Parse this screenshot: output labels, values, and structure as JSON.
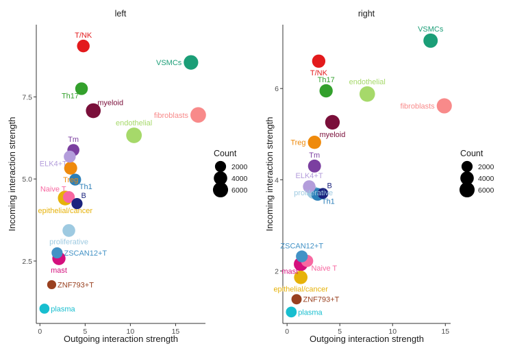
{
  "chart_data": [
    {
      "type": "scatter",
      "title": "left",
      "xlabel": "Outgoing interaction strength",
      "ylabel": "Incoming interaction strength",
      "xlim": [
        -0.4,
        18.3
      ],
      "ylim": [
        0.6,
        9.7
      ],
      "xticks": [
        0,
        5,
        10,
        15
      ],
      "xtick_labels": [
        "0",
        "5",
        "10",
        "15"
      ],
      "yticks": [
        2.5,
        5.0,
        7.5
      ],
      "ytick_labels": [
        "2.5",
        "5.0",
        "7.5"
      ],
      "points": [
        {
          "label": "T/NK",
          "x": 4.8,
          "y": 9.05,
          "count": 3200,
          "color": "#e31a1c",
          "label_pos": "above"
        },
        {
          "label": "VSMCs",
          "x": 16.7,
          "y": 8.55,
          "count": 5200,
          "color": "#1b9e77",
          "label_pos": "left"
        },
        {
          "label": "Th17",
          "x": 4.6,
          "y": 7.75,
          "count": 3200,
          "color": "#33a02c",
          "label_pos": "below-left"
        },
        {
          "label": "myeloid",
          "x": 5.9,
          "y": 7.08,
          "count": 5600,
          "color": "#7a0f3a",
          "label_pos": "above-right"
        },
        {
          "label": "fibroblasts",
          "x": 17.5,
          "y": 6.95,
          "count": 6600,
          "color": "#f88a8a",
          "label_pos": "left"
        },
        {
          "label": "endothelial",
          "x": 10.4,
          "y": 6.33,
          "count": 6600,
          "color": "#a6d96a",
          "label_pos": "above"
        },
        {
          "label": "Tm",
          "x": 3.7,
          "y": 5.88,
          "count": 2700,
          "color": "#7b3fa0",
          "label_pos": "above"
        },
        {
          "label": "ELK4+T",
          "x": 3.3,
          "y": 5.68,
          "count": 2600,
          "color": "#b39ddb",
          "label_pos": "below-left"
        },
        {
          "label": "Treg",
          "x": 3.4,
          "y": 5.33,
          "count": 3600,
          "color": "#ef8a0c",
          "label_pos": "below"
        },
        {
          "label": "Th1",
          "x": 3.9,
          "y": 4.98,
          "count": 2500,
          "color": "#2c7fb8",
          "label_pos": "below-right"
        },
        {
          "label": "Naive T",
          "x": 3.2,
          "y": 4.45,
          "count": 2500,
          "color": "#f768a1",
          "label_pos": "above-left"
        },
        {
          "label": "epithelial/cancer",
          "x": 2.8,
          "y": 4.42,
          "count": 5500,
          "color": "#e6b20a",
          "label_pos": "below"
        },
        {
          "label": "B",
          "x": 4.1,
          "y": 4.25,
          "count": 2000,
          "color": "#1a237e",
          "label_pos": "above-right"
        },
        {
          "label": "proliferative",
          "x": 3.2,
          "y": 3.43,
          "count": 3300,
          "color": "#9ecae1",
          "label_pos": "below"
        },
        {
          "label": "ZSCAN12+T",
          "x": 1.9,
          "y": 2.75,
          "count": 2000,
          "color": "#4292c6",
          "label_pos": "right"
        },
        {
          "label": "mast",
          "x": 2.1,
          "y": 2.58,
          "count": 3800,
          "color": "#d40f7d",
          "label_pos": "below"
        },
        {
          "label": "ZNF793+T",
          "x": 1.3,
          "y": 1.78,
          "count": 1000,
          "color": "#99401f",
          "label_pos": "right"
        },
        {
          "label": "plasma",
          "x": 0.5,
          "y": 1.05,
          "count": 1400,
          "color": "#17becf",
          "label_pos": "right"
        }
      ]
    },
    {
      "type": "scatter",
      "title": "right",
      "xlabel": "Outgoing interaction strength",
      "ylabel": "Incoming interaction strength",
      "xlim": [
        -0.4,
        15.5
      ],
      "ylim": [
        0.85,
        7.4
      ],
      "xticks": [
        0,
        5,
        10,
        15
      ],
      "xtick_labels": [
        "0",
        "5",
        "10",
        "15"
      ],
      "yticks": [
        2,
        4,
        6
      ],
      "ytick_labels": [
        "2",
        "4",
        "6"
      ],
      "points": [
        {
          "label": "VSMCs",
          "x": 13.6,
          "y": 7.05,
          "count": 5000,
          "color": "#1b9e77",
          "label_pos": "above"
        },
        {
          "label": "T/NK",
          "x": 3.0,
          "y": 6.6,
          "count": 3800,
          "color": "#e31a1c",
          "label_pos": "below"
        },
        {
          "label": "Th17",
          "x": 3.7,
          "y": 5.95,
          "count": 3800,
          "color": "#33a02c",
          "label_pos": "above"
        },
        {
          "label": "endothelial",
          "x": 7.6,
          "y": 5.88,
          "count": 6500,
          "color": "#a6d96a",
          "label_pos": "above"
        },
        {
          "label": "fibroblasts",
          "x": 14.9,
          "y": 5.62,
          "count": 6000,
          "color": "#f88a8a",
          "label_pos": "left"
        },
        {
          "label": "myeloid",
          "x": 4.3,
          "y": 5.26,
          "count": 5300,
          "color": "#7a0f3a",
          "label_pos": "below"
        },
        {
          "label": "Treg",
          "x": 2.6,
          "y": 4.82,
          "count": 3800,
          "color": "#ef8a0c",
          "label_pos": "left"
        },
        {
          "label": "Tm",
          "x": 2.6,
          "y": 4.3,
          "count": 3500,
          "color": "#7b3fa0",
          "label_pos": "above"
        },
        {
          "label": "ELK4+T",
          "x": 2.1,
          "y": 3.85,
          "count": 3200,
          "color": "#b39ddb",
          "label_pos": "above"
        },
        {
          "label": "proliferative",
          "x": 2.5,
          "y": 3.72,
          "count": 3300,
          "color": "#9ecae1",
          "label_pos": "center"
        },
        {
          "label": "Th1",
          "x": 2.9,
          "y": 3.68,
          "count": 3300,
          "color": "#2c7fb8",
          "label_pos": "below-right"
        },
        {
          "label": "B",
          "x": 3.4,
          "y": 3.7,
          "count": 1800,
          "color": "#1a237e",
          "label_pos": "above-right"
        },
        {
          "label": "ZSCAN12+T",
          "x": 1.4,
          "y": 2.32,
          "count": 2500,
          "color": "#4292c6",
          "label_pos": "above"
        },
        {
          "label": "Naive T",
          "x": 1.9,
          "y": 2.22,
          "count": 2800,
          "color": "#f768a1",
          "label_pos": "below-right"
        },
        {
          "label": "mast",
          "x": 1.3,
          "y": 2.15,
          "count": 4500,
          "color": "#d40f7d",
          "label_pos": "below-left"
        },
        {
          "label": "epithelial/cancer",
          "x": 1.3,
          "y": 1.86,
          "count": 4000,
          "color": "#e6b20a",
          "label_pos": "below"
        },
        {
          "label": "ZNF793+T",
          "x": 0.9,
          "y": 1.38,
          "count": 1500,
          "color": "#99401f",
          "label_pos": "right"
        },
        {
          "label": "plasma",
          "x": 0.4,
          "y": 1.1,
          "count": 1800,
          "color": "#17becf",
          "label_pos": "right"
        }
      ]
    }
  ],
  "legend": {
    "title": "Count",
    "entries": [
      {
        "label": "2000",
        "count": 2000
      },
      {
        "label": "4000",
        "count": 4000
      },
      {
        "label": "6000",
        "count": 6000
      }
    ]
  }
}
